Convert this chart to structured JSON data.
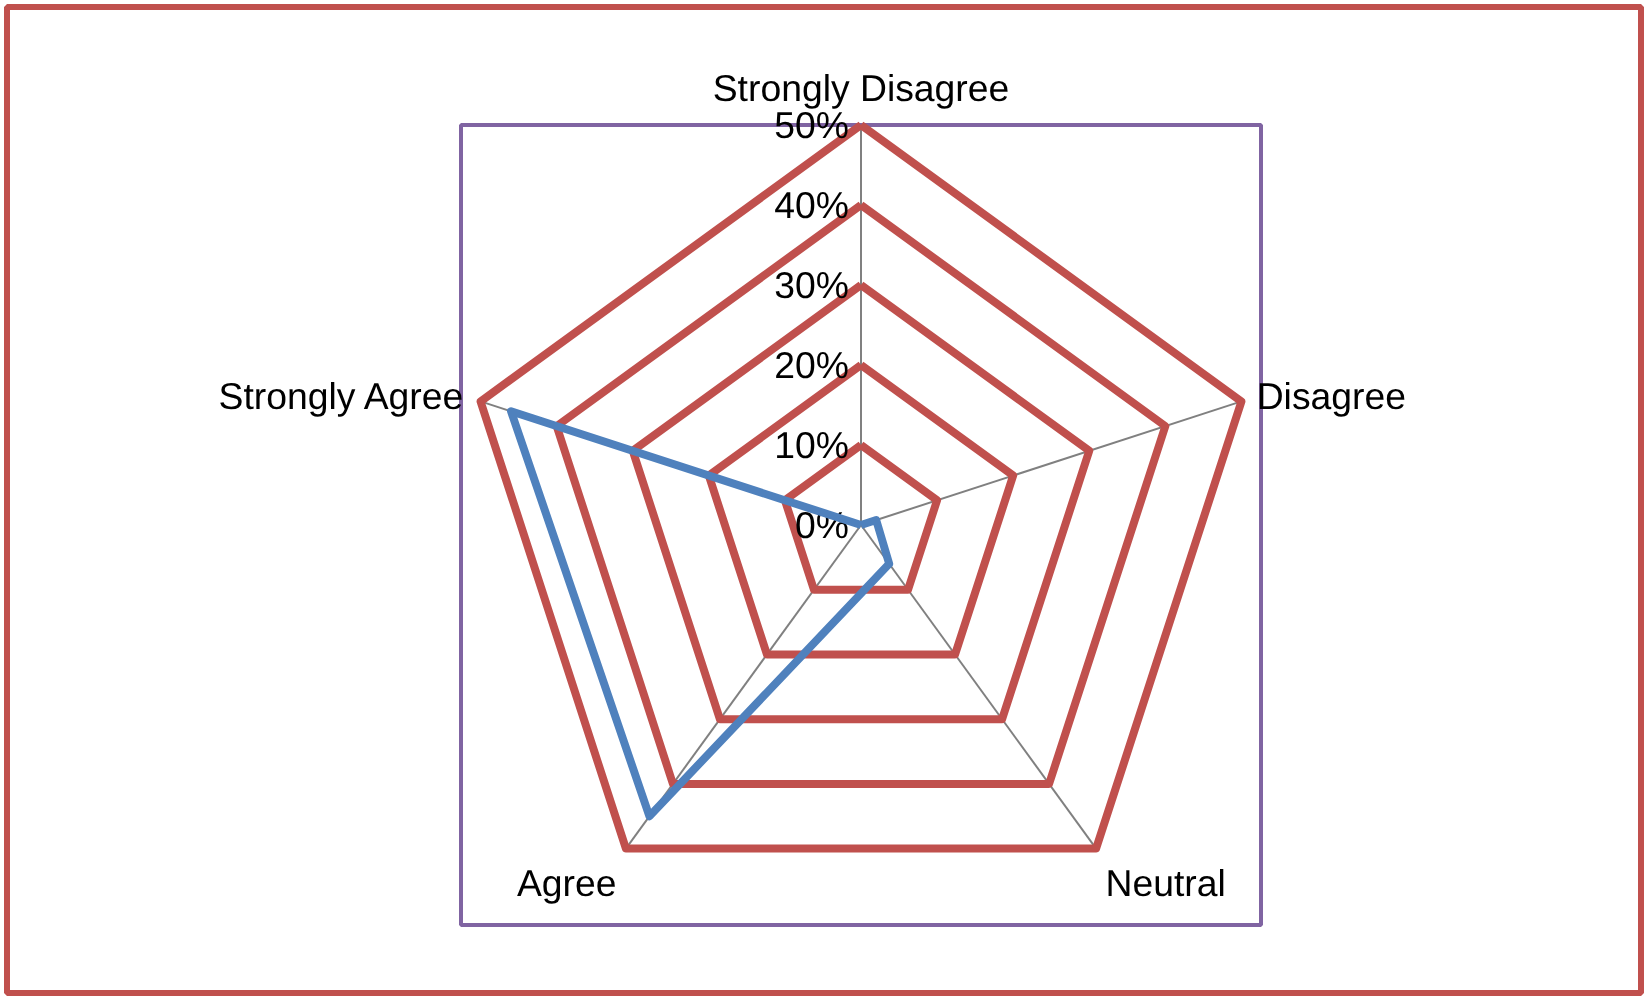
{
  "chart_data": {
    "type": "radar",
    "categories": [
      "Strongly Disagree",
      "Disagree",
      "Neutral",
      "Agree",
      "Strongly Agree"
    ],
    "series": [
      {
        "color": "#4f81bd",
        "values": [
          0,
          2,
          6,
          45,
          46
        ]
      }
    ],
    "ylim": [
      0,
      50
    ],
    "yticks": [
      {
        "value": 0,
        "label": "0%"
      },
      {
        "value": 10,
        "label": "10%"
      },
      {
        "value": 20,
        "label": "20%"
      },
      {
        "value": 30,
        "label": "30%"
      },
      {
        "value": 40,
        "label": "40%"
      },
      {
        "value": 50,
        "label": "50%"
      }
    ],
    "grid": true,
    "marker": "none",
    "line_style": "solid"
  }
}
